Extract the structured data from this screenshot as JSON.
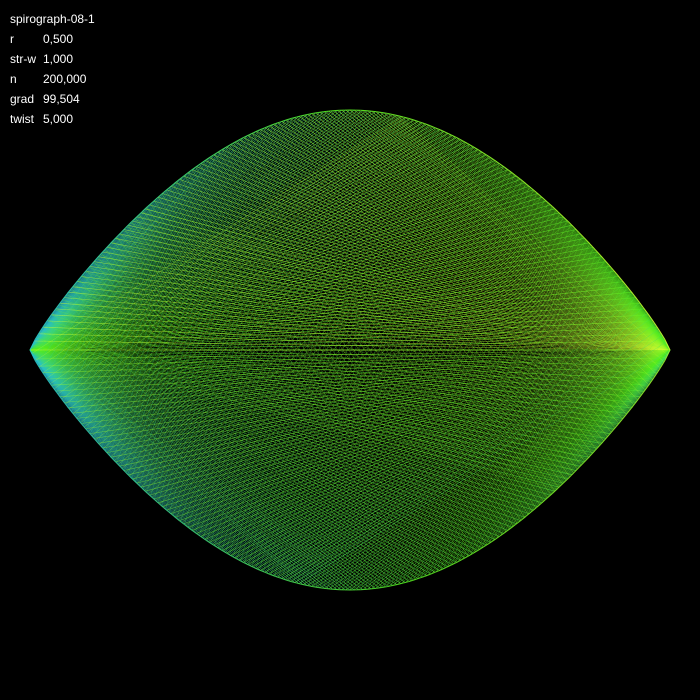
{
  "title": "spirograph-08-1",
  "params": [
    {
      "label": "r",
      "value": "0,500"
    },
    {
      "label": "str-w",
      "value": "1,000"
    },
    {
      "label": "n",
      "value": "200,000"
    },
    {
      "label": "grad",
      "value": "99,504"
    },
    {
      "label": "twist",
      "value": "5,000"
    }
  ],
  "colors": {
    "background": "#000000",
    "text": "#ffffff",
    "gradient_start": "#22bbee",
    "gradient_mid": "#55ee22",
    "gradient_end": "#ddff33"
  }
}
